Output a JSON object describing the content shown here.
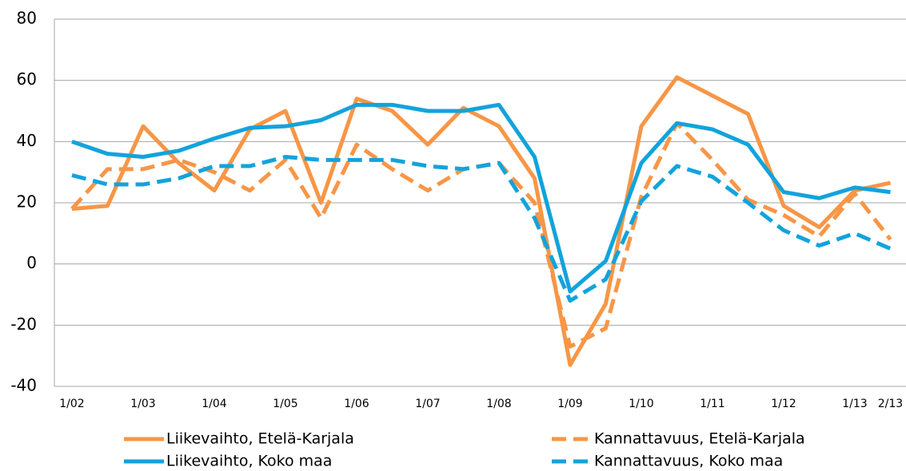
{
  "chart_data": {
    "type": "line",
    "categories": [
      "1/02",
      null,
      "1/03",
      null,
      "1/04",
      null,
      "1/05",
      null,
      "1/06",
      null,
      "1/07",
      null,
      "1/08",
      null,
      "1/09",
      null,
      "1/10",
      null,
      "1/11",
      null,
      "1/12",
      null,
      "1/13",
      "2/13"
    ],
    "series": [
      {
        "name": "Liikevaihto, Etelä-Karjala",
        "color": "#f79646",
        "style": "solid",
        "values": [
          18,
          19,
          45,
          33,
          24,
          44,
          50,
          20,
          54,
          50,
          39,
          51,
          45,
          28,
          -33,
          -13,
          45,
          61,
          55,
          49,
          19,
          12,
          24,
          26.5
        ]
      },
      {
        "name": "Kannattavuus, Etelä-Karjala",
        "color": "#f79646",
        "style": "dashed",
        "values": [
          18,
          31,
          31,
          34,
          30,
          24,
          34,
          15,
          39,
          31,
          24,
          31,
          33,
          20,
          -27,
          -21,
          22,
          46,
          34,
          21,
          16,
          9,
          23,
          8
        ]
      },
      {
        "name": "Liikevaihto, Koko maa",
        "color": "#12a3dc",
        "style": "solid",
        "values": [
          40,
          36,
          35,
          37,
          41,
          44.5,
          45,
          47,
          52,
          52,
          50,
          50,
          52,
          35,
          -9,
          1,
          33,
          46,
          44,
          39,
          23.5,
          21.5,
          25,
          23.5
        ]
      },
      {
        "name": "Kannattavuus, Koko maa",
        "color": "#12a3dc",
        "style": "dashed",
        "values": [
          29,
          26,
          26,
          28,
          32,
          32,
          35,
          34,
          34,
          34,
          32,
          31,
          33,
          15,
          -12,
          -5,
          20.5,
          32,
          28.5,
          20,
          11,
          6,
          10,
          5
        ]
      }
    ],
    "ylim": [
      -40,
      80
    ],
    "yticks": [
      -40,
      -20,
      0,
      20,
      40,
      60,
      80
    ],
    "grid": true,
    "legend": "bottom"
  }
}
